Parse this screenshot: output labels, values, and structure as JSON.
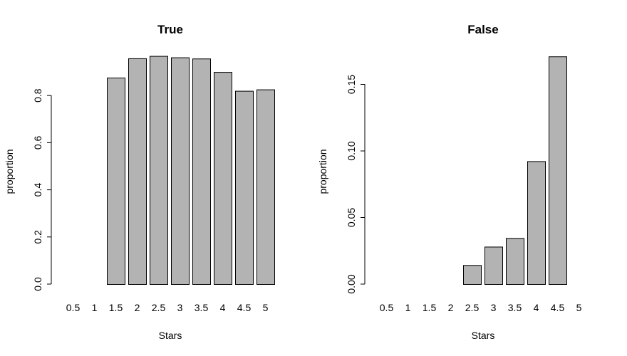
{
  "chart_data": [
    {
      "type": "bar",
      "title": "True",
      "xlabel": "Stars",
      "ylabel": "proportion",
      "categories": [
        "0.5",
        "1",
        "1.5",
        "2",
        "2.5",
        "3",
        "3.5",
        "4",
        "4.5",
        "5"
      ],
      "values": [
        0.0,
        0.0,
        0.876,
        0.958,
        0.968,
        0.962,
        0.957,
        0.9,
        0.82,
        0.826
      ],
      "ylim": [
        0,
        1.0
      ],
      "yticks": [
        "0.0",
        "0.2",
        "0.4",
        "0.6",
        "0.8"
      ],
      "ytick_values": [
        0,
        0.2,
        0.4,
        0.6,
        0.8
      ],
      "bar_color": "#b3b3b3",
      "grid": false
    },
    {
      "type": "bar",
      "title": "False",
      "xlabel": "Stars",
      "ylabel": "proportion",
      "categories": [
        "0.5",
        "1",
        "1.5",
        "2",
        "2.5",
        "3",
        "3.5",
        "4",
        "4.5",
        "5"
      ],
      "values": [
        0.0,
        0.0,
        0.0,
        0.0,
        0.0143,
        0.0281,
        0.0346,
        0.0923,
        0.171,
        0.0
      ],
      "ylim": [
        0,
        0.177
      ],
      "yticks": [
        "0.00",
        "0.05",
        "0.10",
        "0.15"
      ],
      "ytick_values": [
        0,
        0.05,
        0.1,
        0.15
      ],
      "bar_color": "#b3b3b3",
      "grid": false
    }
  ]
}
